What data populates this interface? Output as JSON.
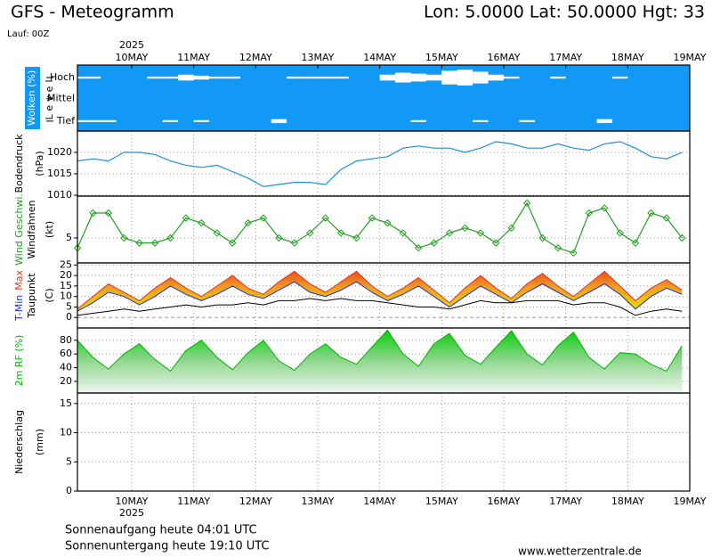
{
  "header": {
    "title": "GFS - Meteogramm",
    "location": "Lon: 5.0000 Lat: 50.0000 Hgt: 33",
    "run": "Lauf: 00Z"
  },
  "chart_data": [
    {
      "type": "cloud",
      "ylabel": [
        "Wolken (%)",
        "Level"
      ],
      "xlabel": "2025",
      "x": [
        3,
        9,
        15,
        21,
        27,
        33,
        39,
        45,
        51,
        57,
        63,
        69,
        75,
        81,
        87,
        93,
        99,
        105,
        111,
        117,
        123,
        129,
        135,
        141,
        147,
        153,
        159,
        165,
        171,
        177,
        183,
        189,
        195,
        201,
        207,
        213,
        219,
        225,
        231,
        237
      ],
      "xlim": [
        3,
        240
      ],
      "xticks": [
        {
          "value": 24,
          "label": "10MAY"
        },
        {
          "value": 48,
          "label": "11MAY"
        },
        {
          "value": 72,
          "label": "12MAY"
        },
        {
          "value": 96,
          "label": "13MAY"
        },
        {
          "value": 120,
          "label": "14MAY"
        },
        {
          "value": 144,
          "label": "15MAY"
        },
        {
          "value": 168,
          "label": "16MAY"
        },
        {
          "value": 192,
          "label": "17MAY"
        },
        {
          "value": 216,
          "label": "18MAY"
        },
        {
          "value": 240,
          "label": "19MAY"
        }
      ],
      "background": "#1199f5",
      "grid": false,
      "series": [
        {
          "name": "Hoch",
          "color": "#ffffff",
          "values": [
            10,
            10,
            0,
            0,
            0,
            10,
            10,
            30,
            20,
            10,
            10,
            0,
            0,
            0,
            10,
            10,
            10,
            10,
            0,
            0,
            30,
            50,
            40,
            30,
            70,
            80,
            60,
            30,
            10,
            0,
            0,
            10,
            0,
            0,
            0,
            10,
            0,
            0,
            0,
            0
          ]
        },
        {
          "name": "Mittel",
          "color": "#ffffff",
          "values": [
            0,
            0,
            0,
            0,
            0,
            0,
            0,
            0,
            0,
            0,
            0,
            0,
            0,
            0,
            0,
            0,
            0,
            0,
            0,
            0,
            0,
            0,
            0,
            0,
            0,
            0,
            0,
            0,
            0,
            0,
            0,
            0,
            0,
            0,
            0,
            0,
            0,
            0,
            0,
            0
          ]
        },
        {
          "name": "Tief",
          "color": "#ffffff",
          "values": [
            10,
            10,
            10,
            0,
            0,
            0,
            10,
            0,
            10,
            0,
            0,
            0,
            0,
            20,
            0,
            0,
            0,
            0,
            0,
            0,
            0,
            0,
            10,
            0,
            0,
            0,
            10,
            0,
            0,
            10,
            0,
            0,
            0,
            0,
            20,
            0,
            0,
            0,
            0,
            0
          ]
        }
      ]
    },
    {
      "type": "line",
      "ylabel": [
        "Bodendruck",
        "(hPa)"
      ],
      "x": [
        3,
        9,
        15,
        21,
        27,
        33,
        39,
        45,
        51,
        57,
        63,
        69,
        75,
        81,
        87,
        93,
        99,
        105,
        111,
        117,
        123,
        129,
        135,
        141,
        147,
        153,
        159,
        165,
        171,
        177,
        183,
        189,
        195,
        201,
        207,
        213,
        219,
        225,
        231,
        237
      ],
      "xlim": [
        3,
        240
      ],
      "xticks": [
        24,
        48,
        72,
        96,
        120,
        144,
        168,
        192,
        216,
        240
      ],
      "ylim": [
        1009.8,
        1025
      ],
      "yticks": [
        1010,
        1015,
        1020
      ],
      "grid": true,
      "series": [
        {
          "color": "#1f8fd8",
          "values": [
            1018,
            1018.5,
            1018,
            1020,
            1020,
            1019.5,
            1018,
            1017,
            1016.5,
            1017,
            1015.5,
            1014,
            1012,
            1012.5,
            1013,
            1013,
            1012.5,
            1016,
            1018,
            1018.5,
            1019,
            1021,
            1021.5,
            1021,
            1021,
            1020,
            1021,
            1022.5,
            1022,
            1021,
            1021,
            1022,
            1021,
            1020.5,
            1022,
            1022.5,
            1021,
            1019,
            1018.5,
            1020
          ]
        }
      ]
    },
    {
      "type": "line",
      "ylabel": [
        "Wind Geschwi.",
        "Windfahnen",
        "(kt)"
      ],
      "markers": true,
      "x": [
        3,
        9,
        15,
        21,
        27,
        33,
        39,
        45,
        51,
        57,
        63,
        69,
        75,
        81,
        87,
        93,
        99,
        105,
        111,
        117,
        123,
        129,
        135,
        141,
        147,
        153,
        159,
        165,
        171,
        177,
        183,
        189,
        195,
        201,
        207,
        213,
        219,
        225,
        231,
        237
      ],
      "xlim": [
        3,
        240
      ],
      "xticks": [
        24,
        48,
        72,
        96,
        120,
        144,
        168,
        192,
        216,
        240
      ],
      "ylim": [
        0,
        13.4
      ],
      "yticks": [
        5
      ],
      "grid": true,
      "series": [
        {
          "color": "#22a022",
          "values": [
            3,
            10,
            10,
            5,
            4,
            4,
            5,
            9,
            8,
            6,
            4,
            8,
            9,
            5,
            4,
            6,
            9,
            6,
            5,
            9,
            8,
            6,
            3,
            4,
            6,
            7,
            6,
            4,
            7,
            12,
            5,
            3,
            2,
            10,
            11,
            6,
            4,
            10,
            9,
            5
          ]
        }
      ]
    },
    {
      "type": "band",
      "ylabel": [
        "Taupunkt",
        "(C)"
      ],
      "x": [
        3,
        9,
        15,
        21,
        27,
        33,
        39,
        45,
        51,
        57,
        63,
        69,
        75,
        81,
        87,
        93,
        99,
        105,
        111,
        117,
        123,
        129,
        135,
        141,
        147,
        153,
        159,
        165,
        171,
        177,
        183,
        189,
        195,
        201,
        207,
        213,
        219,
        225,
        231,
        237
      ],
      "xlim": [
        3,
        240
      ],
      "xticks": [
        24,
        48,
        72,
        96,
        120,
        144,
        168,
        192,
        216,
        240
      ],
      "ylim": [
        -5,
        26
      ],
      "yticks": [
        0,
        5,
        10,
        15,
        20,
        25
      ],
      "grid": true,
      "series": [
        {
          "name": "Max",
          "color": "#e83020",
          "values": [
            4,
            10,
            16,
            12,
            8,
            14,
            19,
            14,
            10,
            15,
            20,
            14,
            11,
            17,
            22,
            16,
            12,
            17,
            22,
            15,
            10,
            14,
            19,
            13,
            7,
            14,
            20,
            14,
            9,
            16,
            21,
            15,
            10,
            16,
            22,
            15,
            8,
            14,
            18,
            13
          ]
        },
        {
          "name": "T-Min",
          "color": "#2030d0",
          "values": [
            3,
            7,
            12,
            10,
            6,
            10,
            15,
            11,
            8,
            11,
            15,
            11,
            9,
            13,
            17,
            12,
            10,
            13,
            17,
            12,
            8,
            11,
            15,
            10,
            5,
            10,
            15,
            11,
            7,
            12,
            16,
            12,
            8,
            12,
            16,
            11,
            4,
            10,
            14,
            11
          ]
        },
        {
          "name": "Taupunkt",
          "color": "#000000",
          "values": [
            1,
            2,
            3,
            4,
            3,
            4,
            5,
            6,
            5,
            6,
            6,
            7,
            6,
            8,
            8,
            9,
            8,
            9,
            8,
            8,
            7,
            6,
            5,
            5,
            4,
            6,
            8,
            7,
            7,
            8,
            8,
            8,
            6,
            7,
            7,
            5,
            1,
            3,
            4,
            3
          ]
        }
      ]
    },
    {
      "type": "area",
      "ylabel": [
        "2m RF (%)"
      ],
      "x": [
        3,
        9,
        15,
        21,
        27,
        33,
        39,
        45,
        51,
        57,
        63,
        69,
        75,
        81,
        87,
        93,
        99,
        105,
        111,
        117,
        123,
        129,
        135,
        141,
        147,
        153,
        159,
        165,
        171,
        177,
        183,
        189,
        195,
        201,
        207,
        213,
        219,
        225,
        231,
        237
      ],
      "xlim": [
        3,
        240
      ],
      "xticks": [
        24,
        48,
        72,
        96,
        120,
        144,
        168,
        192,
        216,
        240
      ],
      "ylim": [
        3,
        98
      ],
      "yticks": [
        20,
        40,
        60,
        80
      ],
      "grid": true,
      "series": [
        {
          "color": "#00b400",
          "values": [
            80,
            55,
            38,
            60,
            75,
            52,
            35,
            65,
            80,
            55,
            37,
            62,
            80,
            50,
            36,
            60,
            75,
            55,
            45,
            70,
            95,
            60,
            42,
            75,
            90,
            58,
            45,
            70,
            94,
            60,
            44,
            72,
            92,
            55,
            38,
            62,
            60,
            45,
            35,
            72
          ]
        }
      ]
    },
    {
      "type": "bar",
      "ylabel": [
        "Niederschlag",
        "(mm)"
      ],
      "xlabel": "2025",
      "xlim": [
        3,
        240
      ],
      "xticks": [
        {
          "value": 24,
          "label": "10MAY"
        },
        {
          "value": 48,
          "label": "11MAY"
        },
        {
          "value": 72,
          "label": "12MAY"
        },
        {
          "value": 96,
          "label": "13MAY"
        },
        {
          "value": 120,
          "label": "14MAY"
        },
        {
          "value": 144,
          "label": "15MAY"
        },
        {
          "value": 168,
          "label": "16MAY"
        },
        {
          "value": 192,
          "label": "17MAY"
        },
        {
          "value": 216,
          "label": "18MAY"
        },
        {
          "value": 240,
          "label": "19MAY"
        }
      ],
      "ylim": [
        0,
        16.8
      ],
      "yticks": [
        0,
        5,
        10,
        15
      ],
      "grid": true
    }
  ],
  "footer": {
    "sunrise": "Sonnenaufgang heute 04:01 UTC",
    "sunset": "Sonnenuntergang heute 19:10 UTC",
    "source": "www.wetterzentrale.de"
  }
}
